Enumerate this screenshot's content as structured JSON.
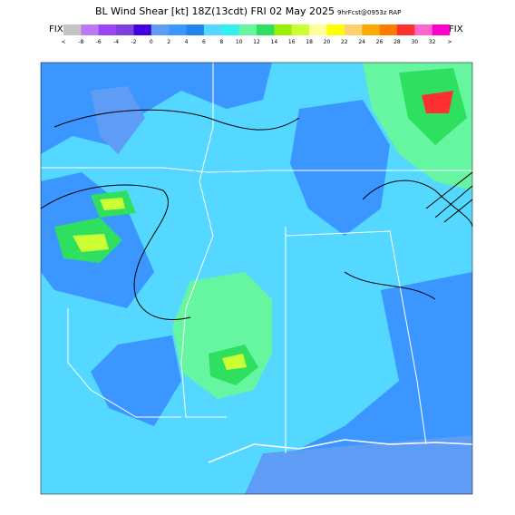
{
  "header": {
    "title": "BL Wind Shear [kt] 18Z(13cdt) FRI 02 May 2025",
    "subtitle": "9hrFcst@0953z RAP",
    "fix_left": "FIX",
    "fix_right": "FIX"
  },
  "legend": {
    "labels": [
      "<",
      "-8",
      "-6",
      "-4",
      "-2",
      "0",
      "2",
      "4",
      "6",
      "8",
      "10",
      "12",
      "14",
      "16",
      "18",
      "20",
      "22",
      "24",
      "26",
      "28",
      "30",
      "32",
      ">"
    ],
    "colors": [
      "#c4c4c4",
      "#b87af5",
      "#9a44f5",
      "#7f3fdf",
      "#4200e0",
      "#5f9cf5",
      "#3c96ff",
      "#1f86f0",
      "#55d8ff",
      "#33f0f0",
      "#66f5a0",
      "#2fe060",
      "#99f000",
      "#ccff33",
      "#ffff99",
      "#ffff00",
      "#ffd070",
      "#ffaa00",
      "#ff7a00",
      "#ff3030",
      "#ff66cc",
      "#ff00cc"
    ]
  }
}
